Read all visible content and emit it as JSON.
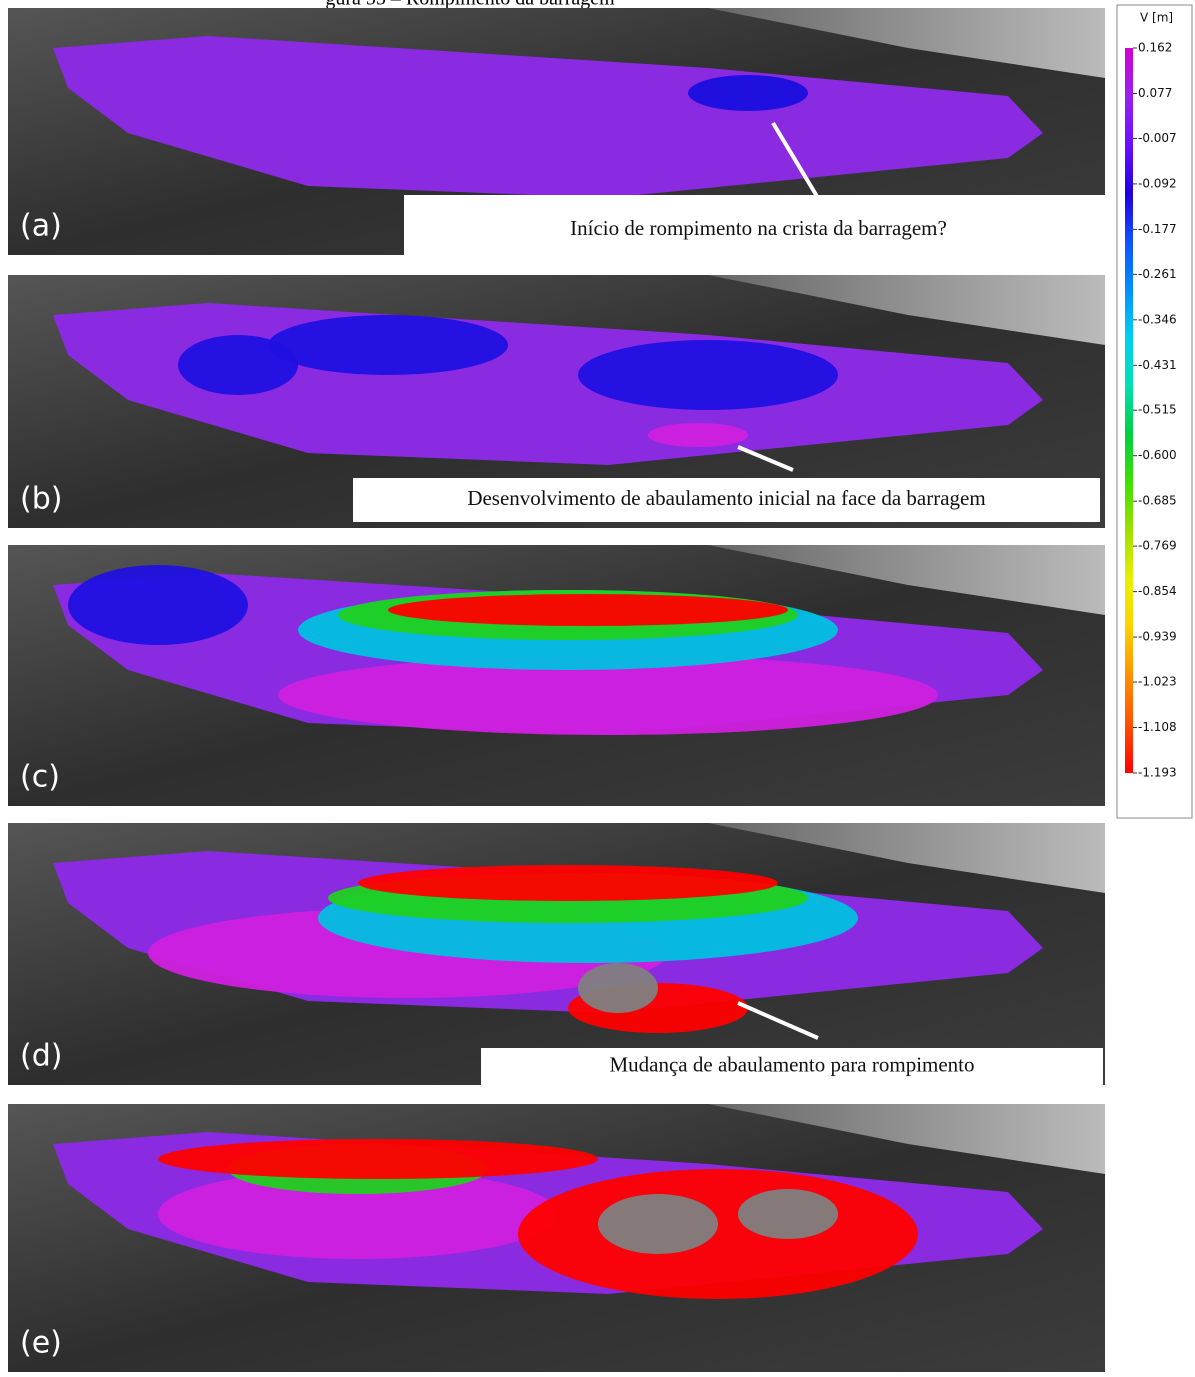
{
  "caption": "gura 55 – Rompimento da barragem",
  "panels": [
    {
      "label": "(a)",
      "annotation": "Início de rompimento na crista da barragem?"
    },
    {
      "label": "(b)",
      "annotation": "Desenvolvimento de abaulamento inicial na face da barragem"
    },
    {
      "label": "(c)"
    },
    {
      "label": "(d)",
      "annotation": "Mudança de abaulamento para rompimento"
    },
    {
      "label": "(e)"
    }
  ],
  "colorbar": {
    "title": "V [m]",
    "ticks": [
      0.162,
      0.077,
      -0.007,
      -0.092,
      -0.177,
      -0.261,
      -0.346,
      -0.431,
      -0.515,
      {
        "value": -0.6,
        "label": "-0.600"
      },
      -0.685,
      -0.769,
      -0.854,
      -0.939,
      -1.023,
      -1.108,
      -1.193
    ],
    "colors": [
      "#d000d0",
      "#9a20f0",
      "#6a10ff",
      "#2000e0",
      "#1050ff",
      "#0090ff",
      "#00d0f0",
      "#00e0b0",
      "#00d040",
      "#40e000",
      "#a0e000",
      "#e8f000",
      "#ffd000",
      "#ff9000",
      "#ff5000",
      "#ff0000"
    ]
  }
}
